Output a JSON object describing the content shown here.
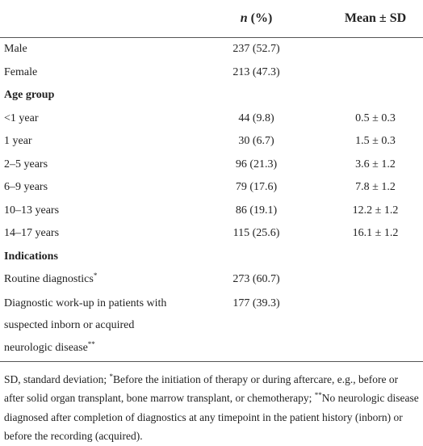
{
  "header": {
    "col2": {
      "var": "n",
      "rest": "(%)"
    },
    "col3": "Mean ± SD"
  },
  "rows": [
    {
      "label": "Male",
      "n": "237 (52.7)"
    },
    {
      "label": "Female",
      "n": "213 (47.3)"
    },
    {
      "heading": "Age group"
    },
    {
      "label": "<1 year",
      "n": "44 (9.8)",
      "mean": "0.5 ± 0.3"
    },
    {
      "label": "1 year",
      "n": "30 (6.7)",
      "mean": "1.5 ± 0.3"
    },
    {
      "label": "2–5 years",
      "n": "96 (21.3)",
      "mean": "3.6 ± 1.2"
    },
    {
      "label": "6–9 years",
      "n": "79 (17.6)",
      "mean": "7.8 ± 1.2"
    },
    {
      "label": "10–13 years",
      "n": "86 (19.1)",
      "mean": "12.2 ± 1.2"
    },
    {
      "label": "14–17 years",
      "n": "115 (25.6)",
      "mean": "16.1 ± 1.2"
    },
    {
      "heading": "Indications"
    },
    {
      "label": "Routine diagnostics",
      "note": "*",
      "n": "273 (60.7)"
    },
    {
      "label": "Diagnostic work-up in patients with suspected inborn or acquired neurologic disease",
      "note": "**",
      "n": "177 (39.3)"
    }
  ],
  "footnote": [
    {
      "text": "SD, standard deviation; "
    },
    {
      "sup": "*"
    },
    {
      "text": "Before the initiation of therapy or during aftercare, e.g., before or after solid organ transplant, bone marrow transplant, or chemotherapy; "
    },
    {
      "sup": "**"
    },
    {
      "text": "No neurologic disease diagnosed after completion of diagnostics at any timepoint in the patient history (inborn) or before the recording (acquired)."
    }
  ]
}
